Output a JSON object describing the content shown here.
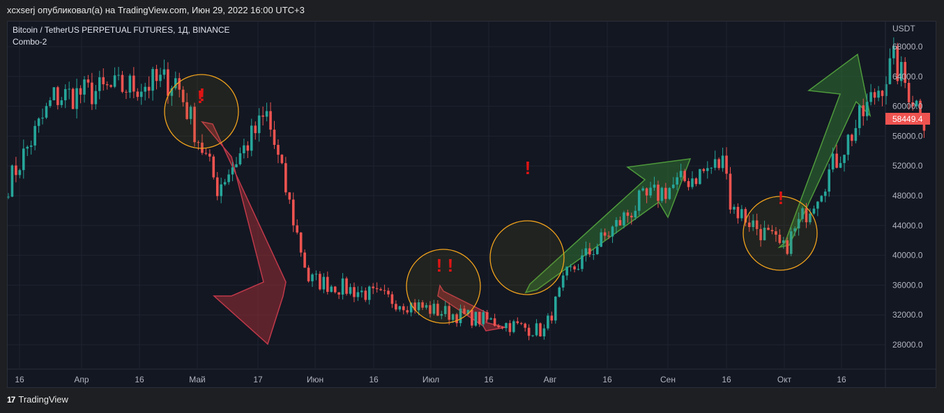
{
  "header": {
    "text": "xcxserj опубликовал(а) на TradingView.com, Июн 29, 2022 16:00 UTC+3"
  },
  "legend": {
    "symbol": "Bitcoin / TetherUS PERPETUAL FUTURES, 1Д, BINANCE",
    "indicator": "Combo-2"
  },
  "footer": {
    "logo": "17",
    "brand": "TradingView"
  },
  "colors": {
    "up": "#26a69a",
    "down": "#ef5350",
    "arrow_down": "#9b2d35",
    "arrow_up": "#2e6b32",
    "circle": "#f0a21c",
    "alert": "#e01414",
    "price_tag": "#ef5350"
  },
  "chart_data": {
    "type": "candlestick",
    "title": "",
    "y_unit": "USDT",
    "ylim": [
      24500,
      70500
    ],
    "y_ticks": [
      "68000.0",
      "64000.0",
      "60000.0",
      "56000.0",
      "52000.0",
      "48000.0",
      "44000.0",
      "40000.0",
      "36000.0",
      "32000.0",
      "28000.0"
    ],
    "x_ticks": [
      "16",
      "Апр",
      "16",
      "Май",
      "17",
      "Июн",
      "16",
      "Июл",
      "16",
      "Авг",
      "16",
      "Сен",
      "16",
      "Окт",
      "16"
    ],
    "last_price": "58449.4",
    "ohlc_key_points": [
      {
        "date": "2021-03-01",
        "close": 49600
      },
      {
        "date": "2021-03-13",
        "close": 61200
      },
      {
        "date": "2021-04-14",
        "close": 63500
      },
      {
        "date": "2021-04-25",
        "close": 49100
      },
      {
        "date": "2021-05-08",
        "close": 58800
      },
      {
        "date": "2021-05-19",
        "close": 36800
      },
      {
        "date": "2021-06-22",
        "close": 32500
      },
      {
        "date": "2021-07-20",
        "close": 29800
      },
      {
        "date": "2021-07-26",
        "close": 37300
      },
      {
        "date": "2021-08-14",
        "close": 47100
      },
      {
        "date": "2021-09-06",
        "close": 52700
      },
      {
        "date": "2021-09-07",
        "close": 46800
      },
      {
        "date": "2021-09-21",
        "close": 40700
      },
      {
        "date": "2021-10-15",
        "close": 61600
      },
      {
        "date": "2021-10-20",
        "close": 65900
      },
      {
        "date": "2021-10-28",
        "close": 58449
      }
    ],
    "annotations": [
      "!",
      "!",
      "!",
      "!",
      "!",
      "!"
    ]
  }
}
